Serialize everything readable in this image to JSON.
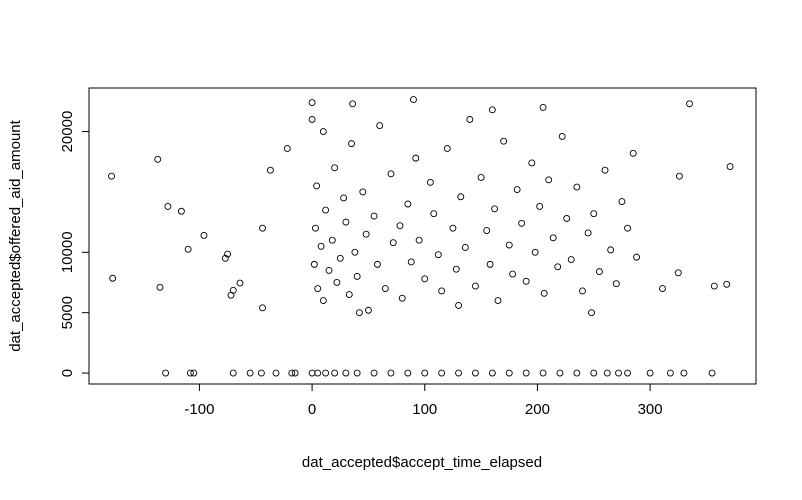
{
  "chart_data": {
    "type": "scatter",
    "xlabel": "dat_accepted$accept_time_elapsed",
    "ylabel": "dat_accepted$offered_aid_amount",
    "xlim": [
      -198,
      394
    ],
    "ylim": [
      -908,
      23608
    ],
    "xticks": [
      -100,
      0,
      100,
      200,
      300
    ],
    "yticks": [
      0,
      5000,
      10000,
      20000
    ],
    "color": "#000000",
    "x": [
      -178,
      -177,
      -137,
      -135,
      -128,
      -116,
      -110,
      -96,
      -77,
      -75,
      -72,
      -70,
      -64,
      -44,
      -37,
      -44,
      -22,
      90,
      0,
      36,
      335,
      371,
      368,
      357,
      311,
      326,
      325,
      2,
      3,
      5,
      4,
      8,
      10,
      12,
      15,
      18,
      20,
      22,
      25,
      28,
      30,
      33,
      35,
      38,
      40,
      45,
      48,
      50,
      55,
      58,
      60,
      65,
      70,
      72,
      78,
      80,
      85,
      88,
      92,
      95,
      100,
      105,
      108,
      112,
      115,
      120,
      125,
      128,
      132,
      136,
      140,
      145,
      150,
      155,
      158,
      162,
      165,
      170,
      175,
      178,
      182,
      186,
      190,
      195,
      198,
      202,
      206,
      210,
      214,
      218,
      222,
      226,
      230,
      235,
      240,
      245,
      250,
      255,
      260,
      265,
      270,
      275,
      280,
      285,
      288,
      42,
      130,
      248,
      10,
      0,
      160,
      205,
      -130,
      -108,
      -105,
      -70,
      -55,
      -45,
      -32,
      -18,
      -15,
      0,
      5,
      12,
      20,
      30,
      40,
      55,
      70,
      85,
      100,
      115,
      130,
      145,
      160,
      175,
      190,
      205,
      220,
      235,
      250,
      262,
      272,
      280,
      300,
      318,
      330,
      355
    ],
    "y": [
      16300,
      7850,
      17700,
      7100,
      13800,
      13400,
      10250,
      11400,
      9500,
      9850,
      6450,
      6850,
      7450,
      12000,
      16800,
      5400,
      18600,
      22650,
      22400,
      22300,
      22300,
      17100,
      7350,
      7200,
      7000,
      16300,
      8300,
      9000,
      12000,
      7000,
      15500,
      10500,
      6000,
      13500,
      8500,
      11000,
      17000,
      7500,
      9500,
      14500,
      12500,
      6500,
      19000,
      10000,
      8000,
      15000,
      11500,
      5200,
      13000,
      9000,
      20500,
      7000,
      16500,
      10800,
      12200,
      6200,
      14000,
      9200,
      17800,
      11000,
      7800,
      15800,
      13200,
      9800,
      6800,
      18600,
      12000,
      8600,
      14600,
      10400,
      21000,
      7200,
      16200,
      11800,
      9000,
      13600,
      6000,
      19200,
      10600,
      8200,
      15200,
      12400,
      7600,
      17400,
      10000,
      13800,
      6600,
      16000,
      11200,
      8800,
      19600,
      12800,
      9400,
      15400,
      6800,
      11600,
      13200,
      8400,
      16800,
      10200,
      7400,
      14200,
      12000,
      18200,
      9600,
      5000,
      5600,
      5000,
      20000,
      21000,
      21800,
      22000,
      0,
      0,
      0,
      0,
      0,
      0,
      0,
      0,
      0,
      0,
      0,
      0,
      0,
      0,
      0,
      0,
      0,
      0,
      0,
      0,
      0,
      0,
      0,
      0,
      0,
      0,
      0,
      0,
      0,
      0,
      0,
      0,
      0,
      0,
      0,
      0
    ]
  }
}
